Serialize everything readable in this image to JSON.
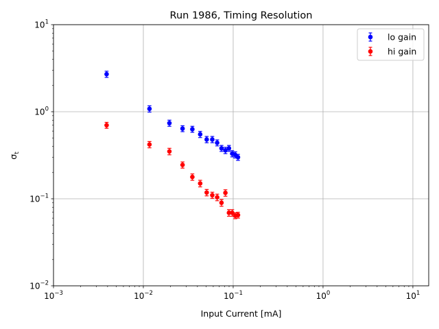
{
  "chart_data": {
    "type": "scatter",
    "title": "Run 1986, Timing Resolution",
    "xlabel": "Input Current [mA]",
    "ylabel": "σ",
    "ylabel_sub": "t",
    "xscale": "log",
    "yscale": "log",
    "xlim": [
      0.001,
      15
    ],
    "ylim": [
      0.01,
      10
    ],
    "grid": true,
    "legend_position": "top-right",
    "x_ticks": [
      {
        "value": 0.001,
        "base": "10",
        "exp": "−3"
      },
      {
        "value": 0.01,
        "base": "10",
        "exp": "−2"
      },
      {
        "value": 0.1,
        "base": "10",
        "exp": "−1"
      },
      {
        "value": 1,
        "base": "10",
        "exp": "0"
      },
      {
        "value": 10,
        "base": "10",
        "exp": "1"
      }
    ],
    "y_ticks": [
      {
        "value": 0.01,
        "base": "10",
        "exp": "−2"
      },
      {
        "value": 0.1,
        "base": "10",
        "exp": "−1"
      },
      {
        "value": 1,
        "base": "10",
        "exp": "0"
      },
      {
        "value": 10,
        "base": "10",
        "exp": "1"
      }
    ],
    "series": [
      {
        "name": "lo gain",
        "color": "#0000ff",
        "x": [
          0.0039,
          0.0117,
          0.0195,
          0.0273,
          0.0351,
          0.0429,
          0.0507,
          0.0585,
          0.0663,
          0.0741,
          0.0819,
          0.0897,
          0.0975,
          0.1053,
          0.1131
        ],
        "y": [
          2.7,
          1.08,
          0.74,
          0.64,
          0.63,
          0.55,
          0.48,
          0.48,
          0.44,
          0.38,
          0.36,
          0.38,
          0.33,
          0.32,
          0.3
        ],
        "err": [
          0.22,
          0.09,
          0.06,
          0.05,
          0.05,
          0.045,
          0.04,
          0.04,
          0.035,
          0.03,
          0.03,
          0.03,
          0.027,
          0.026,
          0.024
        ]
      },
      {
        "name": "hi gain",
        "color": "#ff0000",
        "x": [
          0.0039,
          0.0117,
          0.0195,
          0.0273,
          0.0351,
          0.0429,
          0.0507,
          0.0585,
          0.0663,
          0.0741,
          0.0819,
          0.0897,
          0.0975,
          0.1053,
          0.1131
        ],
        "y": [
          0.7,
          0.42,
          0.35,
          0.245,
          0.178,
          0.15,
          0.118,
          0.11,
          0.104,
          0.09,
          0.117,
          0.069,
          0.069,
          0.064,
          0.065
        ],
        "err": [
          0.055,
          0.035,
          0.03,
          0.02,
          0.015,
          0.013,
          0.01,
          0.009,
          0.009,
          0.008,
          0.01,
          0.006,
          0.006,
          0.005,
          0.005
        ]
      }
    ]
  }
}
